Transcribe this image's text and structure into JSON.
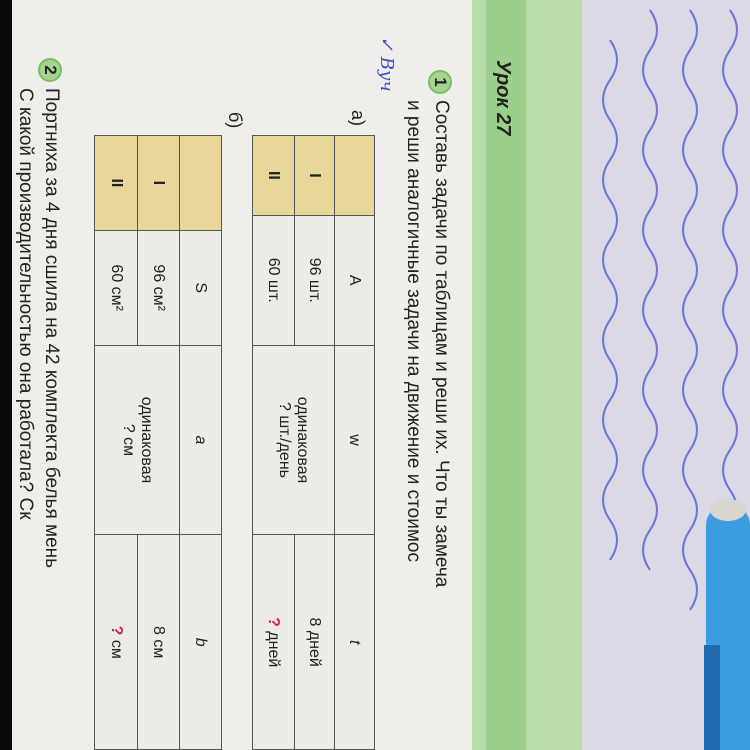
{
  "lesson_title": "Урок 27",
  "task1": {
    "number": "1",
    "line1": "Составь задачи по таблицам и реши их. Что ты замеча",
    "line2": "и реши аналогичные задачи на движение и стоимос",
    "handwritten_mark": "✓ Вуч",
    "part_a": {
      "label": "а)",
      "headers": [
        "",
        "A",
        "w",
        "t"
      ],
      "rows": [
        {
          "name": "I",
          "A": "96 шт.",
          "t": "8 дней"
        },
        {
          "name": "II",
          "A": "60 шт.",
          "t_q": "?",
          "t": "дней"
        }
      ],
      "w_merged_line1": "одинаковая",
      "w_merged_line2": "? шт./день"
    },
    "part_b": {
      "label": "б)",
      "headers": [
        "",
        "S",
        "a",
        "b"
      ],
      "rows": [
        {
          "name": "I",
          "S": "96 см²",
          "b": "8 см"
        },
        {
          "name": "II",
          "S": "60 см²",
          "b_q": "?",
          "b": "см"
        }
      ],
      "a_merged_line1": "одинаковая",
      "a_merged_line2": "? см"
    }
  },
  "task2": {
    "number": "2",
    "line1": "Портниха за 4 дня сшила на 42 комплекта белья мень",
    "line2": "С какой производительностью она работала? Ск"
  },
  "colors": {
    "green_band": "#b9dcaa",
    "table_header": "#e9d699",
    "question_mark": "#d0205a",
    "handwriting": "#3a4fd0",
    "pen": "#3d9be0"
  }
}
